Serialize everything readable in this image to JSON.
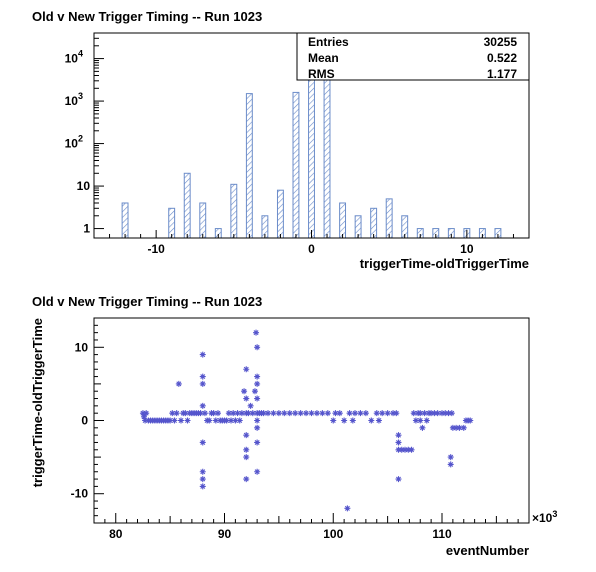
{
  "chart_data": [
    {
      "type": "bar",
      "title": "Old v New Trigger Timing -- Run 1023",
      "xlabel": "triggerTime-oldTriggerTime",
      "ylabel": "",
      "yscale": "log",
      "xlim": [
        -14,
        14
      ],
      "ylim": [
        0.6,
        40000
      ],
      "grid": false,
      "bar_color": "#6b8cc9",
      "bar_fill": "hatched",
      "x_ticks": [
        -10,
        0,
        10
      ],
      "y_ticks": [
        {
          "value": 1,
          "label": "1"
        },
        {
          "value": 10,
          "label": "10"
        },
        {
          "value": 100,
          "label": "10",
          "exp": "2"
        },
        {
          "value": 1000,
          "label": "10",
          "exp": "3"
        },
        {
          "value": 10000,
          "label": "10",
          "exp": "4"
        }
      ],
      "x": [
        -12,
        -9,
        -8,
        -7,
        -6,
        -5,
        -4,
        -3,
        -2,
        -1,
        0,
        1,
        2,
        3,
        4,
        5,
        6,
        7,
        8,
        9,
        10,
        11,
        12
      ],
      "values": [
        4,
        3,
        20,
        4,
        1,
        11,
        1500,
        2,
        8,
        1600,
        20000,
        20000,
        4,
        2,
        3,
        5,
        2,
        1,
        1,
        1,
        1,
        1,
        1
      ],
      "stats": {
        "entries_label": "Entries",
        "entries": "30255",
        "mean_label": "Mean",
        "mean": "0.522",
        "rms_label": "RMS",
        "rms": "1.177"
      }
    },
    {
      "type": "scatter",
      "title": "Old v New Trigger Timing -- Run 1023",
      "xlabel": "eventNumber",
      "ylabel": "triggerTime-oldTriggerTime",
      "xlim": [
        78,
        118
      ],
      "ylim": [
        -14,
        14
      ],
      "x_multiplier": "×10",
      "x_multiplier_exp": "3",
      "x_ticks": [
        80,
        90,
        100,
        110
      ],
      "y_ticks": [
        -10,
        0,
        10
      ],
      "grid": false,
      "marker_color": "#5555cc",
      "marker": "star",
      "points": [
        [
          82.5,
          1
        ],
        [
          82.6,
          0.5
        ],
        [
          82.7,
          0
        ],
        [
          82.8,
          1
        ],
        [
          83,
          0
        ],
        [
          83.2,
          0
        ],
        [
          83.4,
          0
        ],
        [
          83.6,
          0
        ],
        [
          83.8,
          0
        ],
        [
          84,
          0
        ],
        [
          84.2,
          0
        ],
        [
          84.4,
          0
        ],
        [
          84.6,
          0
        ],
        [
          84.8,
          0
        ],
        [
          85,
          0
        ],
        [
          85.2,
          1
        ],
        [
          85.4,
          0
        ],
        [
          85.6,
          1
        ],
        [
          85.8,
          5
        ],
        [
          86,
          0
        ],
        [
          86.2,
          1
        ],
        [
          86.4,
          1
        ],
        [
          86.6,
          0
        ],
        [
          86.8,
          1
        ],
        [
          87,
          1
        ],
        [
          87.2,
          1
        ],
        [
          87.4,
          1
        ],
        [
          87.6,
          1
        ],
        [
          87.8,
          1
        ],
        [
          88,
          9
        ],
        [
          88,
          6
        ],
        [
          88,
          5
        ],
        [
          88,
          2
        ],
        [
          88,
          -3
        ],
        [
          88,
          -7
        ],
        [
          88,
          -8
        ],
        [
          88,
          -9
        ],
        [
          88.2,
          1
        ],
        [
          88.4,
          0
        ],
        [
          88.6,
          0
        ],
        [
          88.8,
          1
        ],
        [
          89,
          1
        ],
        [
          89.2,
          0
        ],
        [
          89.4,
          1
        ],
        [
          89.6,
          0
        ],
        [
          89.8,
          0
        ],
        [
          90,
          0
        ],
        [
          90.2,
          0
        ],
        [
          90.4,
          1
        ],
        [
          90.6,
          0
        ],
        [
          90.8,
          1
        ],
        [
          91,
          0
        ],
        [
          91.2,
          1
        ],
        [
          91.4,
          0
        ],
        [
          91.6,
          1
        ],
        [
          91.8,
          4
        ],
        [
          92,
          7
        ],
        [
          92,
          3
        ],
        [
          92,
          1
        ],
        [
          92,
          -2
        ],
        [
          92,
          -4
        ],
        [
          92,
          -5
        ],
        [
          92,
          -8
        ],
        [
          92.2,
          1
        ],
        [
          92.4,
          2
        ],
        [
          92.6,
          1
        ],
        [
          92.8,
          4
        ],
        [
          92.9,
          12
        ],
        [
          93,
          10
        ],
        [
          93,
          6
        ],
        [
          93,
          5
        ],
        [
          93,
          3
        ],
        [
          93,
          1
        ],
        [
          93,
          0
        ],
        [
          93,
          -1
        ],
        [
          93,
          -3
        ],
        [
          93,
          -7
        ],
        [
          93.2,
          1
        ],
        [
          93.4,
          1
        ],
        [
          93.6,
          1
        ],
        [
          94,
          1
        ],
        [
          94.5,
          1
        ],
        [
          95,
          1
        ],
        [
          95.5,
          1
        ],
        [
          96,
          1
        ],
        [
          96.5,
          1
        ],
        [
          97,
          1
        ],
        [
          97.5,
          1
        ],
        [
          98,
          1
        ],
        [
          98.5,
          1
        ],
        [
          99,
          1
        ],
        [
          99.5,
          1
        ],
        [
          100,
          0
        ],
        [
          100.2,
          1
        ],
        [
          100.6,
          1
        ],
        [
          101,
          0
        ],
        [
          101.3,
          -12
        ],
        [
          101.5,
          1
        ],
        [
          101.8,
          0
        ],
        [
          102,
          1
        ],
        [
          102.5,
          1
        ],
        [
          103,
          1
        ],
        [
          103.5,
          0
        ],
        [
          104,
          1
        ],
        [
          104.2,
          0
        ],
        [
          104.5,
          1
        ],
        [
          105,
          1
        ],
        [
          105.5,
          1
        ],
        [
          105.8,
          1
        ],
        [
          106,
          -2
        ],
        [
          106,
          -3
        ],
        [
          106,
          -4
        ],
        [
          106,
          -8
        ],
        [
          106.3,
          -4
        ],
        [
          106.6,
          -4
        ],
        [
          106.9,
          -4
        ],
        [
          107.2,
          -4
        ],
        [
          107.4,
          1
        ],
        [
          107.6,
          0
        ],
        [
          107.8,
          1
        ],
        [
          108,
          1
        ],
        [
          108,
          0
        ],
        [
          108.2,
          -1
        ],
        [
          108.4,
          1
        ],
        [
          108.6,
          0
        ],
        [
          108.8,
          1
        ],
        [
          109,
          1
        ],
        [
          109.3,
          1
        ],
        [
          109.6,
          1
        ],
        [
          110,
          1
        ],
        [
          110.3,
          1
        ],
        [
          110.6,
          1
        ],
        [
          110.8,
          -5
        ],
        [
          110.8,
          -6
        ],
        [
          110.9,
          1
        ],
        [
          111,
          -1
        ],
        [
          111.3,
          -1
        ],
        [
          111.6,
          -1
        ],
        [
          112,
          -1
        ],
        [
          112.2,
          0
        ],
        [
          112.4,
          0
        ],
        [
          112.6,
          0
        ]
      ]
    }
  ]
}
